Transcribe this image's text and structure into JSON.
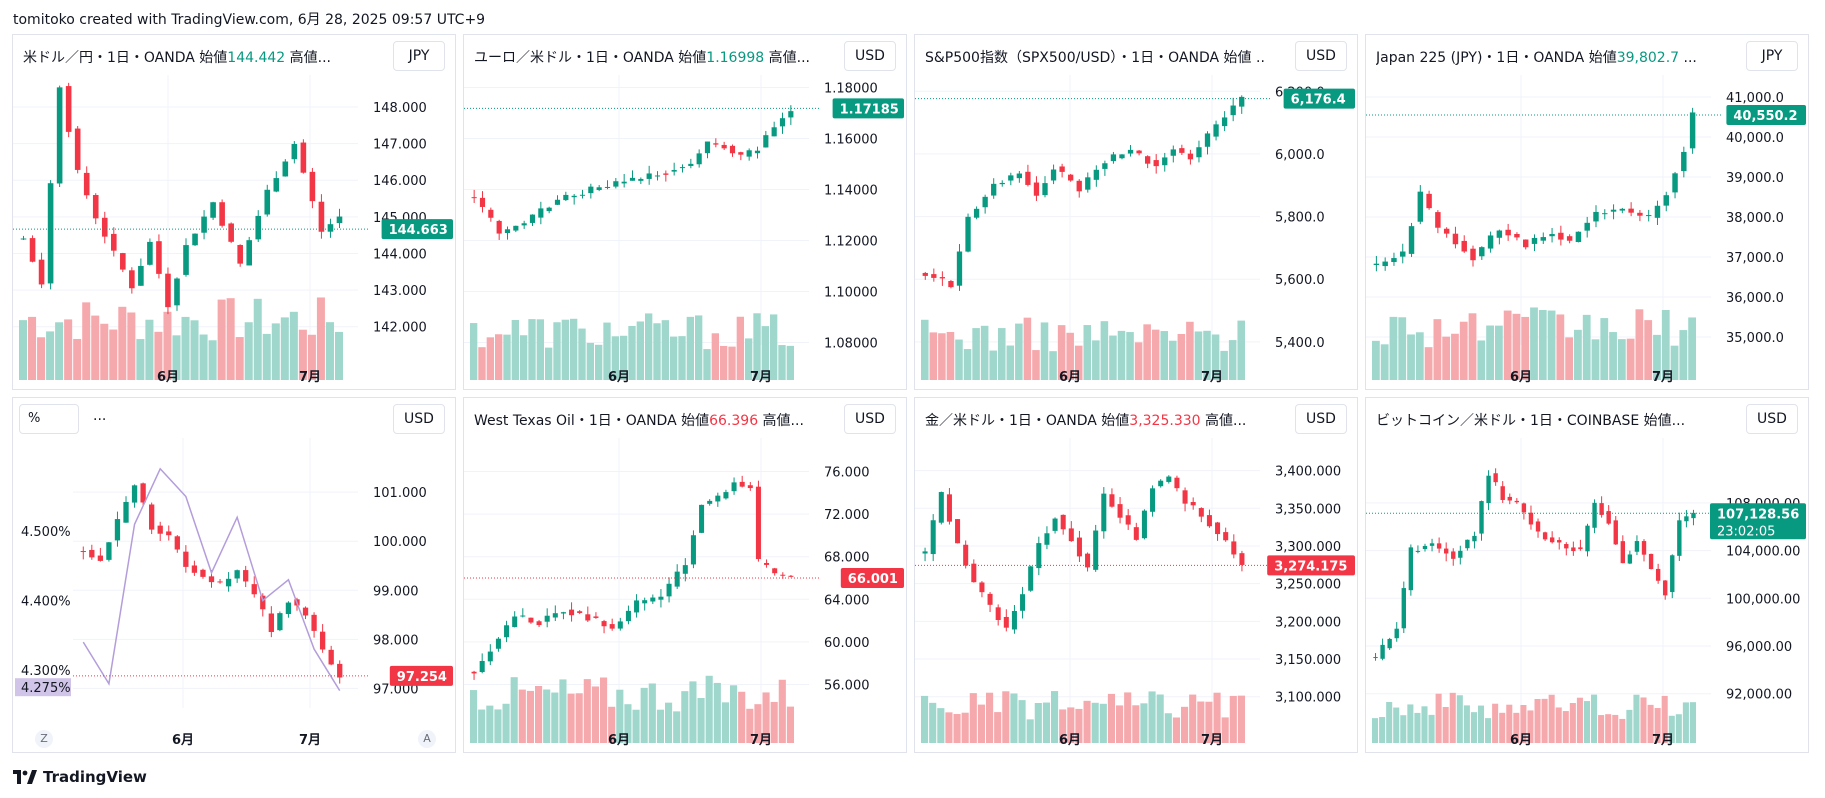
{
  "header": {
    "text": "tomitoko created with TradingView.com, 6月 28, 2025 09:57 UTC+9"
  },
  "footer": {
    "brand": "TradingView"
  },
  "colors": {
    "up": "#089981",
    "down": "#f23645",
    "vol_up": "#9fd7cd",
    "vol_down": "#f6a9ad",
    "grid": "#f0f3fa"
  },
  "chart_data": [
    {
      "id": "usdjpy",
      "type": "candlestick",
      "title": "米ドル／円・1日・OANDA",
      "open_label": "始値",
      "open_value": "144.442",
      "high_label": "高値...",
      "currency": "JPY",
      "y_ticks": [
        "148.000",
        "147.000",
        "146.000",
        "145.000",
        "144.000",
        "143.000",
        "142.000"
      ],
      "ylim": [
        141.5,
        148.6
      ],
      "x_ticks": [
        "6月",
        "7月"
      ],
      "last_price": "144.663",
      "last_value": 144.663,
      "last_color": "#089981",
      "y_start": 144.4,
      "y_end": 144.66,
      "key": [
        [
          0,
          144.4
        ],
        [
          2,
          143.2
        ],
        [
          4,
          148.6
        ],
        [
          6,
          146.2
        ],
        [
          8,
          145.0
        ],
        [
          10,
          144.0
        ],
        [
          12,
          143.1
        ],
        [
          14,
          144.3
        ],
        [
          16,
          142.6
        ],
        [
          18,
          144.2
        ],
        [
          21,
          145.4
        ],
        [
          24,
          143.7
        ],
        [
          27,
          145.7
        ],
        [
          30,
          147.0
        ],
        [
          33,
          144.6
        ],
        [
          35,
          145.0
        ]
      ],
      "n": 36,
      "vol_max_frac": 0.32
    },
    {
      "id": "eurusd",
      "type": "candlestick",
      "title": "ユーロ／米ドル・1日・OANDA",
      "open_label": "始値",
      "open_value": "1.16998",
      "high_label": "高値...",
      "currency": "USD",
      "y_ticks": [
        "1.18000",
        "1.16000",
        "1.14000",
        "1.12000",
        "1.10000",
        "1.08000"
      ],
      "ylim": [
        1.079,
        1.181
      ],
      "x_ticks": [
        "6月",
        "7月"
      ],
      "last_price": "1.17185",
      "last_value": 1.17185,
      "last_color": "#089981",
      "y_start": 1.137,
      "y_end": 1.1718,
      "key": [
        [
          0,
          1.137
        ],
        [
          3,
          1.123
        ],
        [
          6,
          1.127
        ],
        [
          10,
          1.136
        ],
        [
          14,
          1.14
        ],
        [
          18,
          1.143
        ],
        [
          22,
          1.146
        ],
        [
          26,
          1.15
        ],
        [
          28,
          1.158
        ],
        [
          30,
          1.157
        ],
        [
          32,
          1.153
        ],
        [
          34,
          1.156
        ],
        [
          36,
          1.165
        ],
        [
          38,
          1.171
        ]
      ],
      "n": 39,
      "vol_max_frac": 0.26
    },
    {
      "id": "spx500",
      "type": "candlestick",
      "title": "S&P500指数（SPX500/USD）・1日・OANDA",
      "open_label": "始値",
      "open_value": "",
      "high_label": "...",
      "currency": "USD",
      "y_ticks": [
        "6,200.0",
        "6,000.0",
        "5,800.0",
        "5,600.0",
        "5,400.0"
      ],
      "ylim": [
        5390,
        6220
      ],
      "x_ticks": [
        "6月",
        "7月"
      ],
      "last_price": "6,176.4",
      "last_value": 6176.4,
      "last_color": "#089981",
      "y_start": 5620,
      "y_end": 6176.4,
      "key": [
        [
          0,
          5620
        ],
        [
          3,
          5580
        ],
        [
          5,
          5800
        ],
        [
          8,
          5900
        ],
        [
          11,
          5940
        ],
        [
          13,
          5870
        ],
        [
          15,
          5960
        ],
        [
          18,
          5890
        ],
        [
          21,
          5980
        ],
        [
          24,
          6010
        ],
        [
          27,
          5960
        ],
        [
          29,
          6020
        ],
        [
          31,
          5990
        ],
        [
          34,
          6090
        ],
        [
          36,
          6150
        ],
        [
          37,
          6176
        ]
      ],
      "n": 38,
      "vol_max_frac": 0.24
    },
    {
      "id": "jp225",
      "type": "candlestick",
      "title": "Japan 225 (JPY)・1日・OANDA",
      "open_label": "始値",
      "open_value": "39,802.7",
      "high_label": "...",
      "currency": "JPY",
      "y_ticks": [
        "41,000.0",
        "40,000.0",
        "39,000.0",
        "38,000.0",
        "37,000.0",
        "36,000.0",
        "35,000.0"
      ],
      "ylim": [
        34800,
        41300
      ],
      "x_ticks": [
        "6月",
        "7月"
      ],
      "last_price": "40,550.2",
      "last_value": 40550.2,
      "last_color": "#089981",
      "y_start": 36800,
      "y_end": 40550,
      "key": [
        [
          0,
          36800
        ],
        [
          3,
          37100
        ],
        [
          5,
          38600
        ],
        [
          7,
          37700
        ],
        [
          9,
          37400
        ],
        [
          11,
          37000
        ],
        [
          14,
          37700
        ],
        [
          17,
          37300
        ],
        [
          20,
          37600
        ],
        [
          22,
          37400
        ],
        [
          25,
          38100
        ],
        [
          28,
          38200
        ],
        [
          31,
          38000
        ],
        [
          33,
          38600
        ],
        [
          35,
          39700
        ],
        [
          36,
          40550
        ]
      ],
      "n": 37,
      "vol_max_frac": 0.28
    },
    {
      "id": "us10y",
      "type": "candlestick_line",
      "title": "...",
      "left_label": "%",
      "currency": "USD",
      "y_ticks": [
        "101.000",
        "100.000",
        "99.000",
        "98.000",
        "97.000"
      ],
      "ylim": [
        96.6,
        101.9
      ],
      "left_ticks": [
        "4.500%",
        "4.400%",
        "4.300%"
      ],
      "left_lim": [
        4.245,
        4.62
      ],
      "x_ticks": [
        "6月",
        "7月"
      ],
      "last_price": "97.254",
      "last_value": 97.254,
      "last_color": "#f23645",
      "left_badge": "4.275%",
      "left_badge_value": 4.275,
      "y_start": 99.8,
      "y_end": 97.25,
      "key": [
        [
          0,
          99.8
        ],
        [
          2,
          99.6
        ],
        [
          4,
          100.4
        ],
        [
          6,
          101.2
        ],
        [
          8,
          100.3
        ],
        [
          10,
          100.1
        ],
        [
          12,
          99.5
        ],
        [
          14,
          99.3
        ],
        [
          16,
          99.1
        ],
        [
          18,
          99.4
        ],
        [
          20,
          98.9
        ],
        [
          22,
          98.2
        ],
        [
          24,
          98.8
        ],
        [
          26,
          98.5
        ],
        [
          28,
          97.8
        ],
        [
          30,
          97.25
        ]
      ],
      "n": 31,
      "line_key": [
        [
          0,
          4.34
        ],
        [
          3,
          4.28
        ],
        [
          6,
          4.51
        ],
        [
          9,
          4.59
        ],
        [
          12,
          4.55
        ],
        [
          15,
          4.44
        ],
        [
          18,
          4.52
        ],
        [
          21,
          4.4
        ],
        [
          24,
          4.43
        ],
        [
          27,
          4.33
        ],
        [
          30,
          4.27
        ]
      ]
    },
    {
      "id": "wti",
      "type": "candlestick",
      "title": "West Texas Oil・1日・OANDA",
      "open_label": "始値",
      "open_value": "66.396",
      "high_label": "高値...",
      "open_down": true,
      "currency": "USD",
      "y_ticks": [
        "76.000",
        "72.000",
        "68.000",
        "64.000",
        "60.000",
        "56.000"
      ],
      "ylim": [
        53.8,
        78.2
      ],
      "x_ticks": [
        "6月",
        "7月"
      ],
      "last_price": "66.001",
      "last_value": 66.001,
      "last_color": "#f23645",
      "y_start": 57.2,
      "y_end": 66.0,
      "key": [
        [
          0,
          57.2
        ],
        [
          3,
          60.5
        ],
        [
          5,
          62.5
        ],
        [
          8,
          61.8
        ],
        [
          11,
          63.0
        ],
        [
          14,
          62.3
        ],
        [
          17,
          61.3
        ],
        [
          20,
          63.6
        ],
        [
          23,
          64.3
        ],
        [
          26,
          67.3
        ],
        [
          28,
          73.0
        ],
        [
          30,
          73.5
        ],
        [
          32,
          75.0
        ],
        [
          34,
          74.5
        ],
        [
          35,
          67.5
        ],
        [
          37,
          66.4
        ],
        [
          39,
          66.0
        ]
      ],
      "n": 40,
      "vol_max_frac": 0.26
    },
    {
      "id": "xauusd",
      "type": "candlestick",
      "title": "金／米ドル・1日・OANDA",
      "open_label": "始値",
      "open_value": "3,325.330",
      "high_label": "高値...",
      "open_down": true,
      "currency": "USD",
      "y_ticks": [
        "3,400.000",
        "3,350.000",
        "3,300.000",
        "3,250.000",
        "3,200.000",
        "3,150.000",
        "3,100.000"
      ],
      "ylim": [
        3085,
        3430
      ],
      "x_ticks": [
        "6月",
        "7月"
      ],
      "last_price": "3,274.175",
      "last_value": 3274.175,
      "last_color": "#f23645",
      "y_start": 3290,
      "y_end": 3274,
      "key": [
        [
          0,
          3290
        ],
        [
          2,
          3370
        ],
        [
          4,
          3300
        ],
        [
          6,
          3250
        ],
        [
          8,
          3220
        ],
        [
          10,
          3190
        ],
        [
          12,
          3240
        ],
        [
          14,
          3300
        ],
        [
          16,
          3340
        ],
        [
          18,
          3310
        ],
        [
          20,
          3270
        ],
        [
          22,
          3370
        ],
        [
          24,
          3340
        ],
        [
          26,
          3310
        ],
        [
          28,
          3380
        ],
        [
          30,
          3390
        ],
        [
          32,
          3360
        ],
        [
          34,
          3340
        ],
        [
          36,
          3320
        ],
        [
          38,
          3290
        ],
        [
          39,
          3274
        ]
      ],
      "n": 40,
      "vol_max_frac": 0.2
    },
    {
      "id": "btcusd",
      "type": "candlestick",
      "title": "ビットコイン／米ドル・1日・COINBASE",
      "open_label": "始値...",
      "open_value": "",
      "high_label": "",
      "currency": "USD",
      "y_ticks": [
        "108,000.00",
        "104,000.00",
        "100,000.00",
        "96,000.00",
        "92,000.00"
      ],
      "ylim": [
        90800,
        112600
      ],
      "x_ticks": [
        "6月",
        "7月"
      ],
      "last_price": "107,128.56",
      "last_sub": "23:02:05",
      "last_value": 107128.56,
      "last_color": "#089981",
      "y_start": 95000,
      "y_end": 107128,
      "key": [
        [
          0,
          95000
        ],
        [
          3,
          97500
        ],
        [
          5,
          104000
        ],
        [
          8,
          104500
        ],
        [
          11,
          103500
        ],
        [
          14,
          105500
        ],
        [
          16,
          110500
        ],
        [
          18,
          108500
        ],
        [
          20,
          108000
        ],
        [
          23,
          105500
        ],
        [
          26,
          104500
        ],
        [
          29,
          104000
        ],
        [
          31,
          108000
        ],
        [
          33,
          106500
        ],
        [
          35,
          103000
        ],
        [
          37,
          104800
        ],
        [
          39,
          102500
        ],
        [
          41,
          100500
        ],
        [
          43,
          106500
        ],
        [
          45,
          107100
        ]
      ],
      "n": 46,
      "vol_max_frac": 0.2
    }
  ]
}
